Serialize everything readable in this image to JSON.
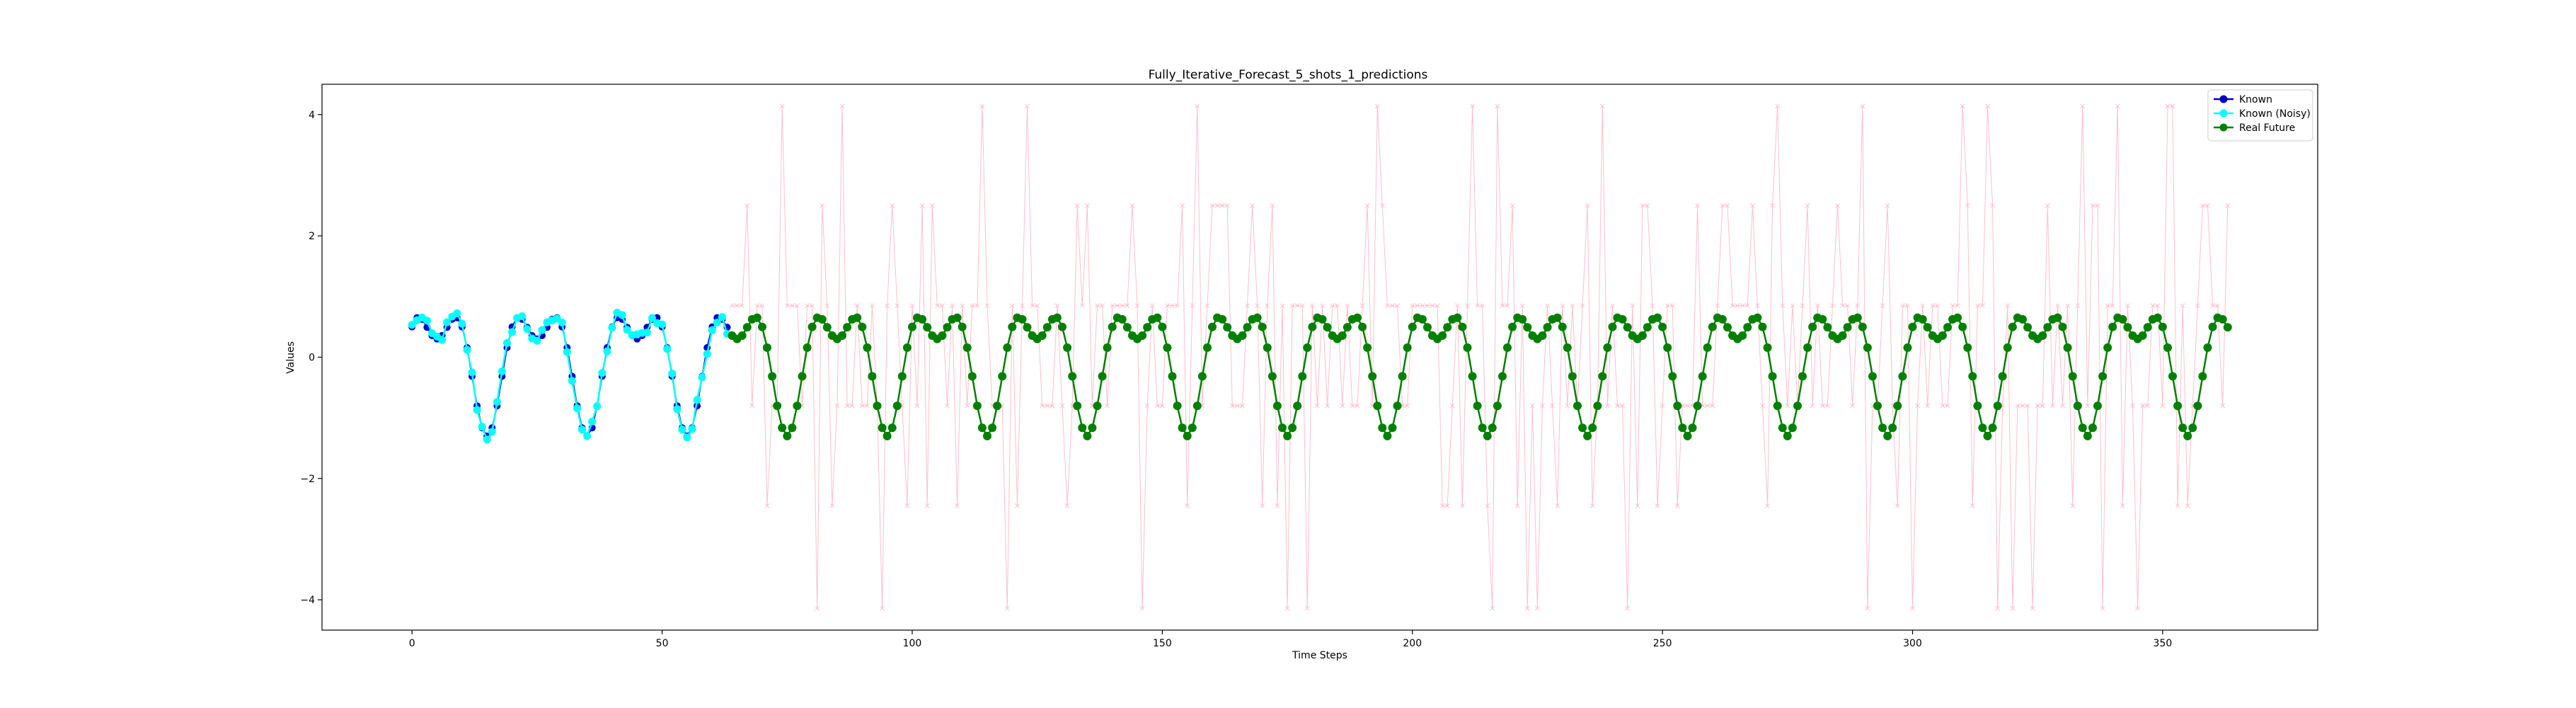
{
  "chart_data": {
    "type": "line",
    "title": "Fully_Iterative_Forecast_5_shots_1_predictions",
    "xlabel": "Time Steps",
    "ylabel": "Values",
    "xlim": [
      -18,
      381
    ],
    "ylim": [
      -4.5,
      4.5
    ],
    "xticks": [
      0,
      50,
      100,
      150,
      200,
      250,
      300,
      350
    ],
    "yticks": [
      -4,
      -2,
      0,
      2,
      4
    ],
    "grid": false,
    "legend_position": "top-right",
    "signal": {
      "formula": "0.8*sin(2*pi*t/20) + 0.5*cos(2*pi*t/10)",
      "known_range": [
        0,
        63
      ],
      "future_range": [
        64,
        363
      ]
    },
    "series": [
      {
        "name": "Known",
        "color": "#0000cd",
        "marker": "circle",
        "x_range": [
          0,
          63
        ]
      },
      {
        "name": "Known (Noisy)",
        "color": "#00ffff",
        "marker": "circle",
        "x_range": [
          0,
          63
        ]
      },
      {
        "name": "Real Future",
        "color": "#008000",
        "marker": "circle",
        "x_range": [
          64,
          363
        ]
      },
      {
        "color": "#ffc0cb",
        "marker": "x",
        "x_range": [
          64,
          363
        ]
      }
    ],
    "prediction_levels": [
      4.14,
      2.5,
      0.85,
      -0.8,
      -2.45,
      -4.14
    ]
  }
}
